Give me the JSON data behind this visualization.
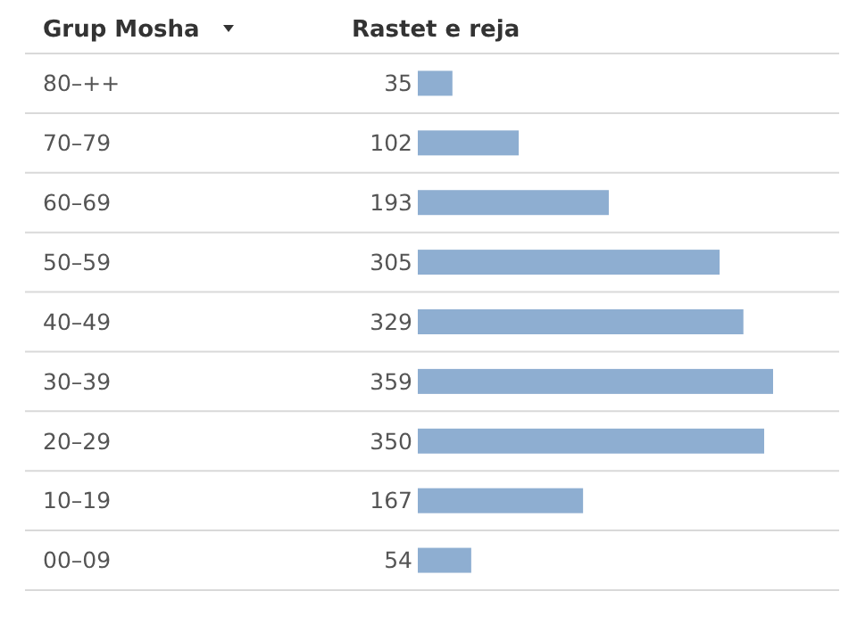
{
  "chart_data": {
    "type": "bar",
    "orientation": "horizontal",
    "ylabel": "Grup Mosha",
    "xlabel": "Rastet e reja",
    "categories": [
      "80–++",
      "70–79",
      "60–69",
      "50–59",
      "40–49",
      "30–39",
      "20–29",
      "10–19",
      "00–09"
    ],
    "values": [
      35,
      102,
      193,
      305,
      329,
      359,
      350,
      167,
      54
    ],
    "color": "#8eaed1",
    "data_labels": true,
    "grid": "y"
  }
}
